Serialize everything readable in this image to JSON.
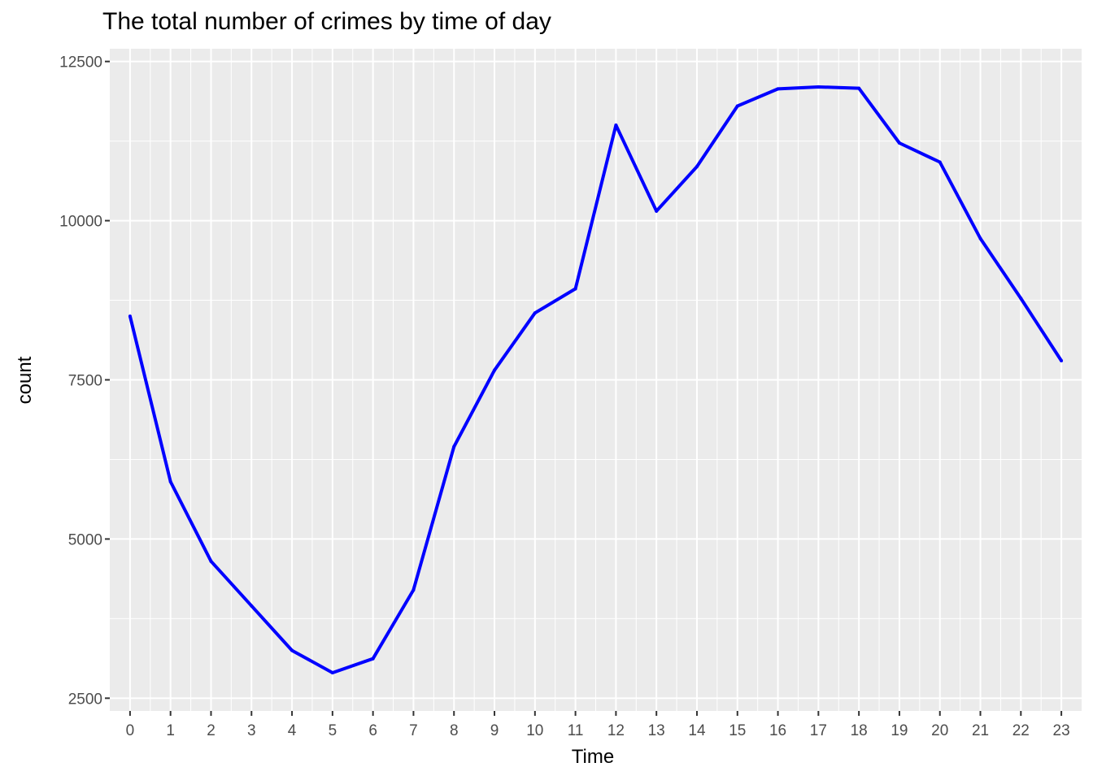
{
  "chart_data": {
    "type": "line",
    "title": "The total number of crimes by time of day",
    "xlabel": "Time",
    "ylabel": "count",
    "x": [
      0,
      1,
      2,
      3,
      4,
      5,
      6,
      7,
      8,
      9,
      10,
      11,
      12,
      13,
      14,
      15,
      16,
      17,
      18,
      19,
      20,
      21,
      22,
      23
    ],
    "series": [
      {
        "values": [
          8500,
          5900,
          4650,
          3950,
          3250,
          2900,
          3120,
          4200,
          6450,
          7650,
          8550,
          8930,
          11500,
          10150,
          10850,
          11800,
          12070,
          12100,
          12080,
          11220,
          10920,
          9720,
          8780,
          7800
        ]
      }
    ],
    "xticks": [
      "0",
      "1",
      "2",
      "3",
      "4",
      "5",
      "6",
      "7",
      "8",
      "9",
      "10",
      "11",
      "12",
      "13",
      "14",
      "15",
      "16",
      "17",
      "18",
      "19",
      "20",
      "21",
      "22",
      "23"
    ],
    "yticks": [
      2500,
      5000,
      7500,
      10000,
      12500
    ],
    "ylim": [
      2500,
      12500
    ],
    "xlim": [
      -0.5,
      23.5
    ],
    "grid": true,
    "panel_color": "#ebebeb",
    "grid_color": "#ffffff",
    "line_color": "#0000ff"
  }
}
